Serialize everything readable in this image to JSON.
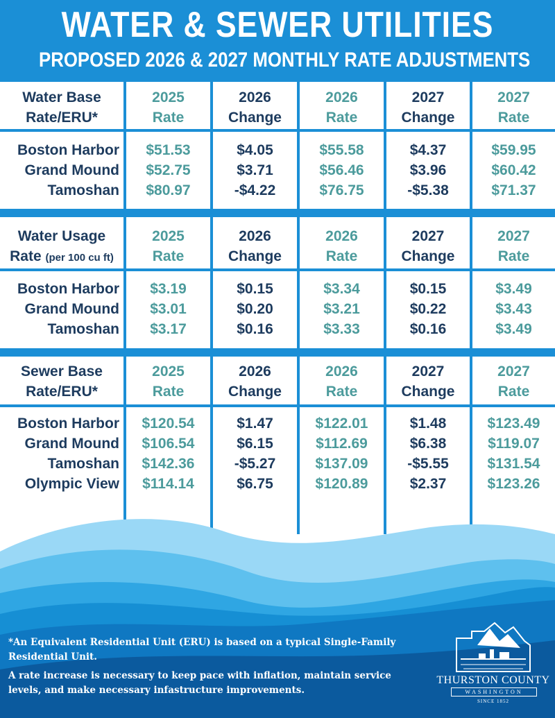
{
  "header": {
    "title": "WATER & SEWER UTILITIES",
    "subtitle": "PROPOSED 2026 & 2027 MONTHLY RATE ADJUSTMENTS"
  },
  "sections": [
    {
      "label_line1": "Water Base",
      "label_line2": "Rate/ERU*",
      "label_line2_suffix": "",
      "headers": [
        {
          "line1": "2025",
          "line2": "Rate"
        },
        {
          "line1": "2026",
          "line2": "Change"
        },
        {
          "line1": "2026",
          "line2": "Rate"
        },
        {
          "line1": "2027",
          "line2": "Change"
        },
        {
          "line1": "2027",
          "line2": "Rate"
        }
      ],
      "rows": [
        {
          "name": "Boston Harbor",
          "values": [
            "$51.53",
            "$4.05",
            "$55.58",
            "$4.37",
            "$59.95"
          ]
        },
        {
          "name": "Grand Mound",
          "values": [
            "$52.75",
            "$3.71",
            "$56.46",
            "$3.96",
            "$60.42"
          ]
        },
        {
          "name": "Tamoshan",
          "values": [
            "$80.97",
            "-$4.22",
            "$76.75",
            "-$5.38",
            "$71.37"
          ]
        }
      ]
    },
    {
      "label_line1": "Water Usage",
      "label_line2": "Rate",
      "label_line2_suffix": "(per 100 cu ft)",
      "headers": [
        {
          "line1": "2025",
          "line2": "Rate"
        },
        {
          "line1": "2026",
          "line2": "Change"
        },
        {
          "line1": "2026",
          "line2": "Rate"
        },
        {
          "line1": "2027",
          "line2": "Change"
        },
        {
          "line1": "2027",
          "line2": "Rate"
        }
      ],
      "rows": [
        {
          "name": "Boston Harbor",
          "values": [
            "$3.19",
            "$0.15",
            "$3.34",
            "$0.15",
            "$3.49"
          ]
        },
        {
          "name": "Grand Mound",
          "values": [
            "$3.01",
            "$0.20",
            "$3.21",
            "$0.22",
            "$3.43"
          ]
        },
        {
          "name": "Tamoshan",
          "values": [
            "$3.17",
            "$0.16",
            "$3.33",
            "$0.16",
            "$3.49"
          ]
        }
      ]
    },
    {
      "label_line1": "Sewer Base",
      "label_line2": "Rate/ERU*",
      "label_line2_suffix": "",
      "headers": [
        {
          "line1": "2025",
          "line2": "Rate"
        },
        {
          "line1": "2026",
          "line2": "Change"
        },
        {
          "line1": "2026",
          "line2": "Rate"
        },
        {
          "line1": "2027",
          "line2": "Change"
        },
        {
          "line1": "2027",
          "line2": "Rate"
        }
      ],
      "rows": [
        {
          "name": "Boston Harbor",
          "values": [
            "$120.54",
            "$1.47",
            "$122.01",
            "$1.48",
            "$123.49"
          ]
        },
        {
          "name": "Grand Mound",
          "values": [
            "$106.54",
            "$6.15",
            "$112.69",
            "$6.38",
            "$119.07"
          ]
        },
        {
          "name": "Tamoshan",
          "values": [
            "$142.36",
            "-$5.27",
            "$137.09",
            "-$5.55",
            "$131.54"
          ]
        },
        {
          "name": "Olympic View",
          "values": [
            "$114.14",
            "$6.75",
            "$120.89",
            "$2.37",
            "$123.26"
          ]
        }
      ]
    }
  ],
  "footer": {
    "note1": "*An Equivalent Residential Unit (ERU) is based on a typical Single-Family Residential Unit.",
    "note2": "A rate increase is necessary to keep pace with inflation, maintain service levels, and make necessary infastructure improvements."
  },
  "logo": {
    "name": "THURSTON COUNTY",
    "state": "WASHINGTON",
    "since": "SINCE 1852"
  },
  "colors": {
    "brand_blue": "#1b8fd6",
    "navy_text": "#1d3b5e",
    "teal_text": "#4c9b9c",
    "wave_light": "#8fd3f5",
    "wave_dark": "#0b5a9e"
  }
}
